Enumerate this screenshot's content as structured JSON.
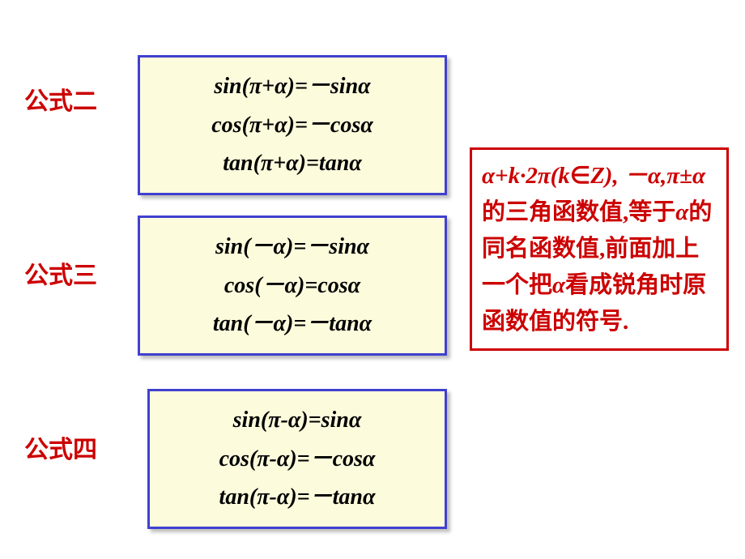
{
  "labels": {
    "formula2": "公式二",
    "formula3": "公式三",
    "formula4": "公式四"
  },
  "formulas": {
    "box2": {
      "line1": "sin(π+α)=－sinα",
      "line2": "cos(π+α)=－cosα",
      "line3": "tan(π+α)=tanα"
    },
    "box3": {
      "line1": "sin(－α)=－sinα",
      "line2": "cos(－α)=cosα",
      "line3": "tan(－α)=－tanα"
    },
    "box4": {
      "line1": "sin(π-α)=sinα",
      "line2": "cos(π-α)=－cosα",
      "line3": "tan(π-α)=－tanα"
    }
  },
  "note": {
    "part1": "α+k·2π(k",
    "part2": "∈",
    "part3": "Z),",
    "part4": "－α,π±α",
    "part5": "的三角函数值,等于",
    "part6": "α",
    "part7": "的同名函数值,前面加上一个把",
    "part8": "α",
    "part9": "看成锐角时原函数值的符号."
  },
  "colors": {
    "labelColor": "#cc0000",
    "boxBg": "#fcfbdc",
    "boxBorder": "#4040d0",
    "noteBorder": "#cc0000",
    "noteText": "#cc0000",
    "formulaText": "#000000",
    "pageBg": "#ffffff"
  }
}
